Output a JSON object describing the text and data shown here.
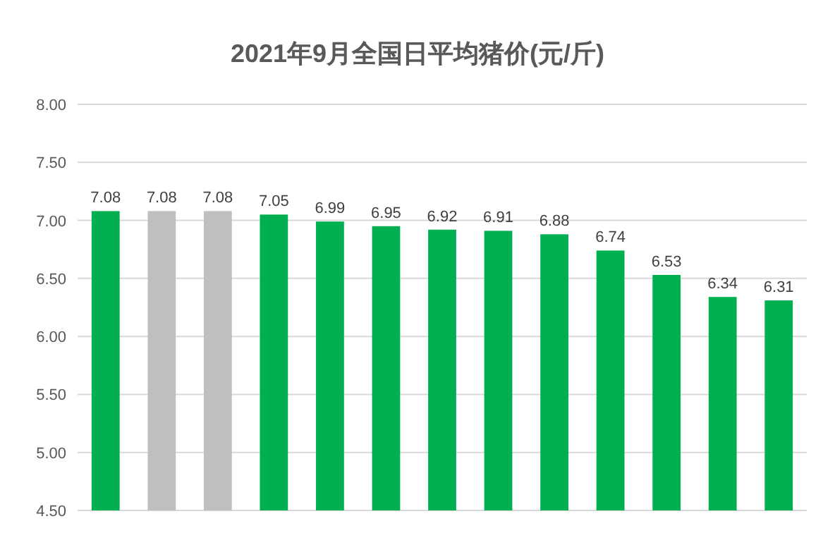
{
  "chart_data": {
    "type": "bar",
    "title": "2021年9月全国日平均猪价(元/斤)",
    "categories": [
      null,
      null,
      null,
      null,
      null,
      null,
      null,
      null,
      null,
      null,
      null,
      null,
      null
    ],
    "values": [
      7.08,
      7.08,
      7.08,
      7.05,
      6.99,
      6.95,
      6.92,
      6.91,
      6.88,
      6.74,
      6.53,
      6.34,
      6.31
    ],
    "colors": [
      "#00b050",
      "#bfbfbf",
      "#bfbfbf",
      "#00b050",
      "#00b050",
      "#00b050",
      "#00b050",
      "#00b050",
      "#00b050",
      "#00b050",
      "#00b050",
      "#00b050",
      "#00b050"
    ],
    "ylim": [
      4.5,
      8.0
    ],
    "yticks": [
      {
        "value": 4.5,
        "label": "4.50"
      },
      {
        "value": 5.0,
        "label": "5.00"
      },
      {
        "value": 5.5,
        "label": "5.50"
      },
      {
        "value": 6.0,
        "label": "6.00"
      },
      {
        "value": 6.5,
        "label": "6.50"
      },
      {
        "value": 7.0,
        "label": "7.00"
      },
      {
        "value": 7.5,
        "label": "7.50"
      },
      {
        "value": 8.0,
        "label": "8.00"
      }
    ],
    "grid": "y",
    "data_labels": true
  }
}
